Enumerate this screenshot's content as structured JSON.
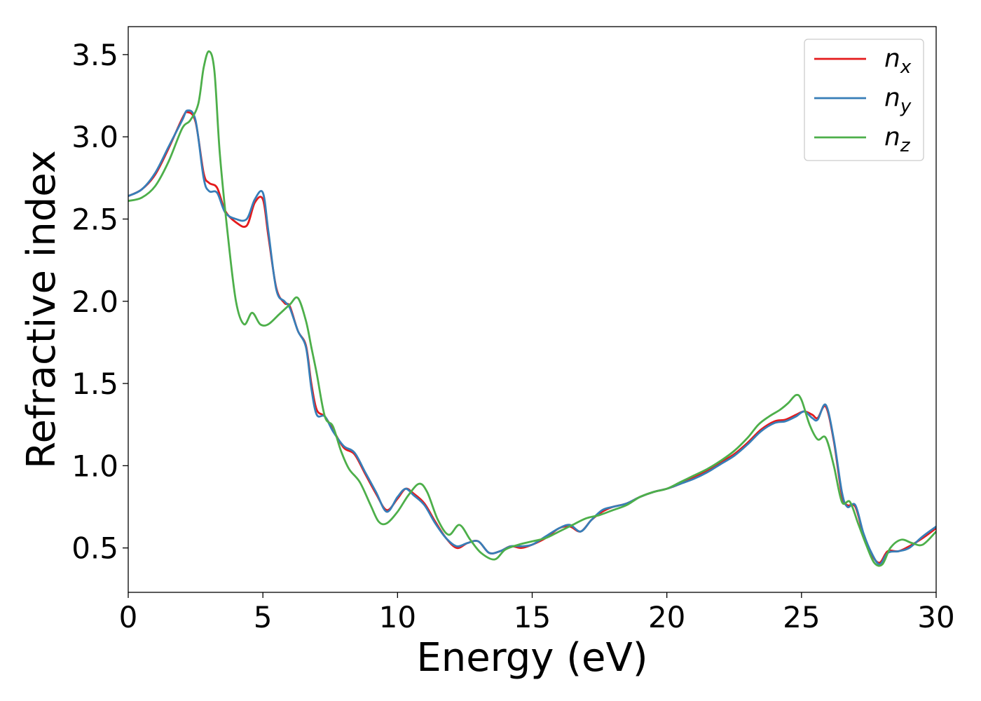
{
  "chart_data": {
    "type": "line",
    "title": "",
    "xlabel": "Energy (eV)",
    "ylabel": "Refractive index",
    "xlim": [
      0,
      30
    ],
    "ylim": [
      0.23,
      3.67
    ],
    "xticks": [
      0,
      5,
      10,
      15,
      20,
      25,
      30
    ],
    "yticks": [
      0.5,
      1.0,
      1.5,
      2.0,
      2.5,
      3.0,
      3.5
    ],
    "xtick_labels": [
      "0",
      "5",
      "10",
      "15",
      "20",
      "25",
      "30"
    ],
    "ytick_labels": [
      "0.5",
      "1.0",
      "1.5",
      "2.0",
      "2.5",
      "3.0",
      "3.5"
    ],
    "grid": false,
    "legend_position": "top-right",
    "series": [
      {
        "name": "n_x",
        "legend_base": "n",
        "legend_sub": "x",
        "color": "#e41a1c",
        "x": [
          0,
          0.5,
          1.0,
          1.5,
          2.0,
          2.2,
          2.5,
          2.8,
          3.0,
          3.3,
          3.6,
          4.0,
          4.4,
          4.7,
          5.0,
          5.2,
          5.5,
          5.8,
          6.0,
          6.3,
          6.6,
          6.8,
          7.0,
          7.3,
          7.6,
          8.0,
          8.4,
          8.8,
          9.2,
          9.6,
          10.0,
          10.3,
          10.6,
          11.0,
          11.4,
          11.8,
          12.2,
          12.6,
          13.0,
          13.4,
          13.8,
          14.2,
          14.6,
          15.0,
          15.5,
          16.0,
          16.4,
          16.8,
          17.2,
          17.6,
          18.0,
          18.5,
          19.0,
          19.5,
          20.0,
          20.5,
          21.0,
          21.5,
          22.0,
          22.5,
          23.0,
          23.5,
          24.0,
          24.4,
          24.8,
          25.1,
          25.4,
          25.6,
          25.9,
          26.2,
          26.5,
          26.7,
          27.0,
          27.3,
          27.6,
          27.9,
          28.2,
          28.6,
          29.0,
          29.5,
          30.0
        ],
        "y": [
          2.64,
          2.68,
          2.77,
          2.93,
          3.11,
          3.15,
          3.09,
          2.78,
          2.72,
          2.69,
          2.55,
          2.48,
          2.46,
          2.6,
          2.62,
          2.4,
          2.08,
          1.99,
          1.97,
          1.82,
          1.73,
          1.5,
          1.34,
          1.3,
          1.22,
          1.11,
          1.07,
          0.95,
          0.83,
          0.73,
          0.8,
          0.86,
          0.83,
          0.77,
          0.66,
          0.56,
          0.5,
          0.53,
          0.54,
          0.47,
          0.48,
          0.51,
          0.5,
          0.52,
          0.56,
          0.62,
          0.63,
          0.6,
          0.67,
          0.72,
          0.75,
          0.77,
          0.81,
          0.84,
          0.86,
          0.89,
          0.93,
          0.97,
          1.02,
          1.07,
          1.14,
          1.22,
          1.27,
          1.28,
          1.31,
          1.33,
          1.31,
          1.29,
          1.36,
          1.15,
          0.82,
          0.76,
          0.75,
          0.58,
          0.46,
          0.41,
          0.48,
          0.48,
          0.51,
          0.56,
          0.62
        ]
      },
      {
        "name": "n_y",
        "legend_base": "n",
        "legend_sub": "y",
        "color": "#377eb8",
        "x": [
          0,
          0.5,
          1.0,
          1.5,
          2.0,
          2.2,
          2.5,
          2.8,
          3.0,
          3.3,
          3.6,
          4.0,
          4.4,
          4.7,
          5.0,
          5.2,
          5.5,
          5.8,
          6.0,
          6.3,
          6.6,
          6.8,
          7.0,
          7.3,
          7.6,
          8.0,
          8.4,
          8.8,
          9.2,
          9.6,
          10.0,
          10.3,
          10.6,
          11.0,
          11.4,
          11.8,
          12.2,
          12.6,
          13.0,
          13.4,
          13.8,
          14.2,
          14.6,
          15.0,
          15.5,
          16.0,
          16.4,
          16.8,
          17.2,
          17.6,
          18.0,
          18.5,
          19.0,
          19.5,
          20.0,
          20.5,
          21.0,
          21.5,
          22.0,
          22.5,
          23.0,
          23.5,
          24.0,
          24.4,
          24.8,
          25.1,
          25.4,
          25.6,
          25.9,
          26.2,
          26.5,
          26.7,
          27.0,
          27.3,
          27.6,
          27.9,
          28.2,
          28.6,
          29.0,
          29.5,
          30.0
        ],
        "y": [
          2.64,
          2.68,
          2.78,
          2.94,
          3.1,
          3.16,
          3.1,
          2.75,
          2.67,
          2.66,
          2.54,
          2.5,
          2.5,
          2.62,
          2.66,
          2.43,
          2.07,
          2.0,
          1.96,
          1.82,
          1.72,
          1.47,
          1.31,
          1.3,
          1.21,
          1.12,
          1.08,
          0.96,
          0.84,
          0.72,
          0.81,
          0.86,
          0.82,
          0.76,
          0.65,
          0.56,
          0.51,
          0.53,
          0.54,
          0.47,
          0.48,
          0.51,
          0.51,
          0.52,
          0.57,
          0.62,
          0.64,
          0.6,
          0.67,
          0.73,
          0.75,
          0.77,
          0.81,
          0.84,
          0.86,
          0.89,
          0.92,
          0.96,
          1.01,
          1.06,
          1.13,
          1.21,
          1.26,
          1.27,
          1.3,
          1.33,
          1.29,
          1.28,
          1.37,
          1.16,
          0.84,
          0.75,
          0.76,
          0.59,
          0.47,
          0.4,
          0.47,
          0.48,
          0.5,
          0.57,
          0.63
        ]
      },
      {
        "name": "n_z",
        "legend_base": "n",
        "legend_sub": "z",
        "color": "#4daf4a",
        "x": [
          0,
          0.5,
          1.0,
          1.5,
          2.0,
          2.3,
          2.6,
          2.8,
          3.0,
          3.2,
          3.4,
          3.7,
          4.0,
          4.3,
          4.6,
          4.9,
          5.2,
          5.6,
          6.0,
          6.3,
          6.6,
          6.8,
          7.0,
          7.3,
          7.6,
          7.9,
          8.2,
          8.6,
          9.0,
          9.3,
          9.6,
          10.0,
          10.4,
          10.8,
          11.1,
          11.5,
          11.9,
          12.3,
          12.7,
          13.1,
          13.6,
          14.0,
          14.5,
          15.0,
          15.5,
          16.0,
          16.5,
          17.0,
          17.5,
          18.0,
          18.5,
          19.0,
          19.5,
          20.0,
          20.5,
          21.0,
          21.5,
          22.0,
          22.5,
          23.0,
          23.4,
          23.8,
          24.2,
          24.5,
          24.8,
          25.0,
          25.3,
          25.6,
          25.9,
          26.2,
          26.5,
          26.8,
          27.1,
          27.4,
          27.7,
          28.0,
          28.3,
          28.7,
          29.1,
          29.5,
          30.0
        ],
        "y": [
          2.61,
          2.63,
          2.7,
          2.85,
          3.05,
          3.1,
          3.2,
          3.42,
          3.52,
          3.4,
          2.9,
          2.4,
          2.0,
          1.86,
          1.93,
          1.86,
          1.86,
          1.92,
          1.98,
          2.02,
          1.88,
          1.72,
          1.56,
          1.3,
          1.24,
          1.09,
          0.98,
          0.9,
          0.76,
          0.66,
          0.65,
          0.72,
          0.82,
          0.89,
          0.84,
          0.67,
          0.58,
          0.64,
          0.55,
          0.47,
          0.43,
          0.49,
          0.52,
          0.54,
          0.56,
          0.6,
          0.64,
          0.68,
          0.7,
          0.73,
          0.76,
          0.81,
          0.84,
          0.86,
          0.9,
          0.94,
          0.98,
          1.03,
          1.09,
          1.17,
          1.25,
          1.3,
          1.34,
          1.38,
          1.43,
          1.4,
          1.25,
          1.16,
          1.17,
          1.0,
          0.78,
          0.78,
          0.65,
          0.52,
          0.41,
          0.4,
          0.5,
          0.55,
          0.53,
          0.52,
          0.6
        ]
      }
    ]
  }
}
